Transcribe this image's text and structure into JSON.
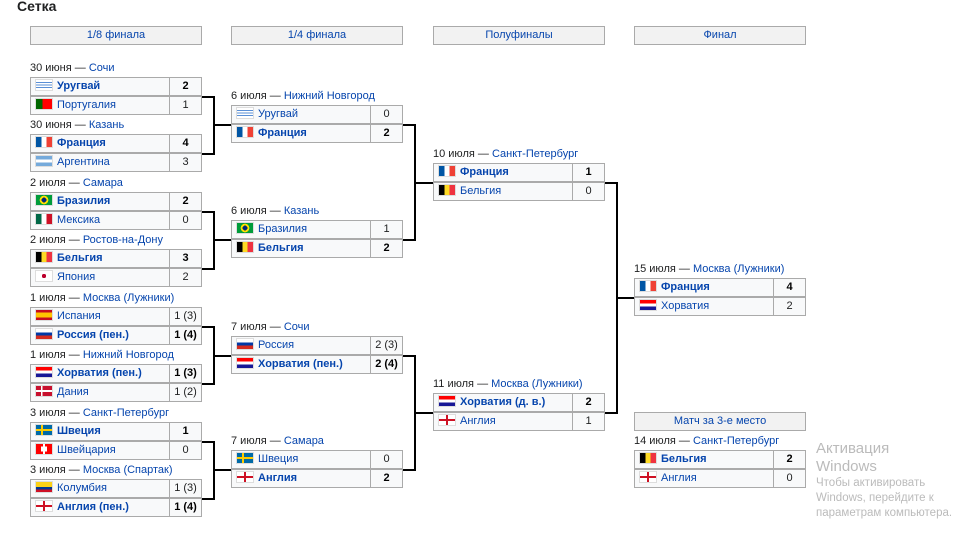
{
  "title": "Сетка",
  "rounds": [
    "1/8 финала",
    "1/4 финала",
    "Полуфиналы",
    "Финал"
  ],
  "third_place_header": "Матч за 3-е место",
  "colors": {
    "link": "#0645ad",
    "border": "#aaaaaa"
  },
  "matches": {
    "r16": [
      {
        "date": "30 июня",
        "city": "Сочи",
        "teams": [
          {
            "name": "Уругвай",
            "flag": "uy",
            "score": "2",
            "win": true
          },
          {
            "name": "Португалия",
            "flag": "pt",
            "score": "1"
          }
        ]
      },
      {
        "date": "30 июня",
        "city": "Казань",
        "teams": [
          {
            "name": "Франция",
            "flag": "fr",
            "score": "4",
            "win": true
          },
          {
            "name": "Аргентина",
            "flag": "ar",
            "score": "3"
          }
        ]
      },
      {
        "date": "2 июля",
        "city": "Самара",
        "teams": [
          {
            "name": "Бразилия",
            "flag": "br",
            "score": "2",
            "win": true
          },
          {
            "name": "Мексика",
            "flag": "mx",
            "score": "0"
          }
        ]
      },
      {
        "date": "2 июля",
        "city": "Ростов-на-Дону",
        "teams": [
          {
            "name": "Бельгия",
            "flag": "be",
            "score": "3",
            "win": true
          },
          {
            "name": "Япония",
            "flag": "jp",
            "score": "2"
          }
        ]
      },
      {
        "date": "1 июля",
        "city": "Москва (Лужники)",
        "teams": [
          {
            "name": "Испания",
            "flag": "es",
            "score": "1 (3)"
          },
          {
            "name": "Россия (пен.)",
            "flag": "ru",
            "score": "1 (4)",
            "win": true
          }
        ]
      },
      {
        "date": "1 июля",
        "city": "Нижний Новгород",
        "teams": [
          {
            "name": "Хорватия (пен.)",
            "flag": "hr",
            "score": "1 (3)",
            "win": true
          },
          {
            "name": "Дания",
            "flag": "dk",
            "score": "1 (2)"
          }
        ]
      },
      {
        "date": "3 июля",
        "city": "Санкт-Петербург",
        "teams": [
          {
            "name": "Швеция",
            "flag": "se",
            "score": "1",
            "win": true
          },
          {
            "name": "Швейцария",
            "flag": "ch",
            "score": "0"
          }
        ]
      },
      {
        "date": "3 июля",
        "city": "Москва (Спартак)",
        "teams": [
          {
            "name": "Колумбия",
            "flag": "co",
            "score": "1 (3)"
          },
          {
            "name": "Англия (пен.)",
            "flag": "en",
            "score": "1 (4)",
            "win": true
          }
        ]
      }
    ],
    "qf": [
      {
        "date": "6 июля",
        "city": "Нижний Новгород",
        "teams": [
          {
            "name": "Уругвай",
            "flag": "uy",
            "score": "0"
          },
          {
            "name": "Франция",
            "flag": "fr",
            "score": "2",
            "win": true
          }
        ]
      },
      {
        "date": "6 июля",
        "city": "Казань",
        "teams": [
          {
            "name": "Бразилия",
            "flag": "br",
            "score": "1"
          },
          {
            "name": "Бельгия",
            "flag": "be",
            "score": "2",
            "win": true
          }
        ]
      },
      {
        "date": "7 июля",
        "city": "Сочи",
        "teams": [
          {
            "name": "Россия",
            "flag": "ru",
            "score": "2 (3)"
          },
          {
            "name": "Хорватия (пен.)",
            "flag": "hr",
            "score": "2 (4)",
            "win": true
          }
        ]
      },
      {
        "date": "7 июля",
        "city": "Самара",
        "teams": [
          {
            "name": "Швеция",
            "flag": "se",
            "score": "0"
          },
          {
            "name": "Англия",
            "flag": "en",
            "score": "2",
            "win": true
          }
        ]
      }
    ],
    "sf": [
      {
        "date": "10 июля",
        "city": "Санкт-Петербург",
        "teams": [
          {
            "name": "Франция",
            "flag": "fr",
            "score": "1",
            "win": true
          },
          {
            "name": "Бельгия",
            "flag": "be",
            "score": "0"
          }
        ]
      },
      {
        "date": "11 июля",
        "city": "Москва (Лужники)",
        "teams": [
          {
            "name": "Хорватия (д. в.)",
            "flag": "hr",
            "score": "2",
            "win": true
          },
          {
            "name": "Англия",
            "flag": "en",
            "score": "1"
          }
        ]
      }
    ],
    "final": [
      {
        "date": "15 июля",
        "city": "Москва (Лужники)",
        "teams": [
          {
            "name": "Франция",
            "flag": "fr",
            "score": "4",
            "win": true
          },
          {
            "name": "Хорватия",
            "flag": "hr",
            "score": "2"
          }
        ]
      }
    ],
    "third": [
      {
        "date": "14 июля",
        "city": "Санкт-Петербург",
        "teams": [
          {
            "name": "Бельгия",
            "flag": "be",
            "score": "2",
            "win": true
          },
          {
            "name": "Англия",
            "flag": "en",
            "score": "0"
          }
        ]
      }
    ]
  },
  "watermark": {
    "line1": "Активация Windows",
    "line2": "Чтобы активировать Windows, перейдите к",
    "line3": "параметрам компьютера."
  }
}
